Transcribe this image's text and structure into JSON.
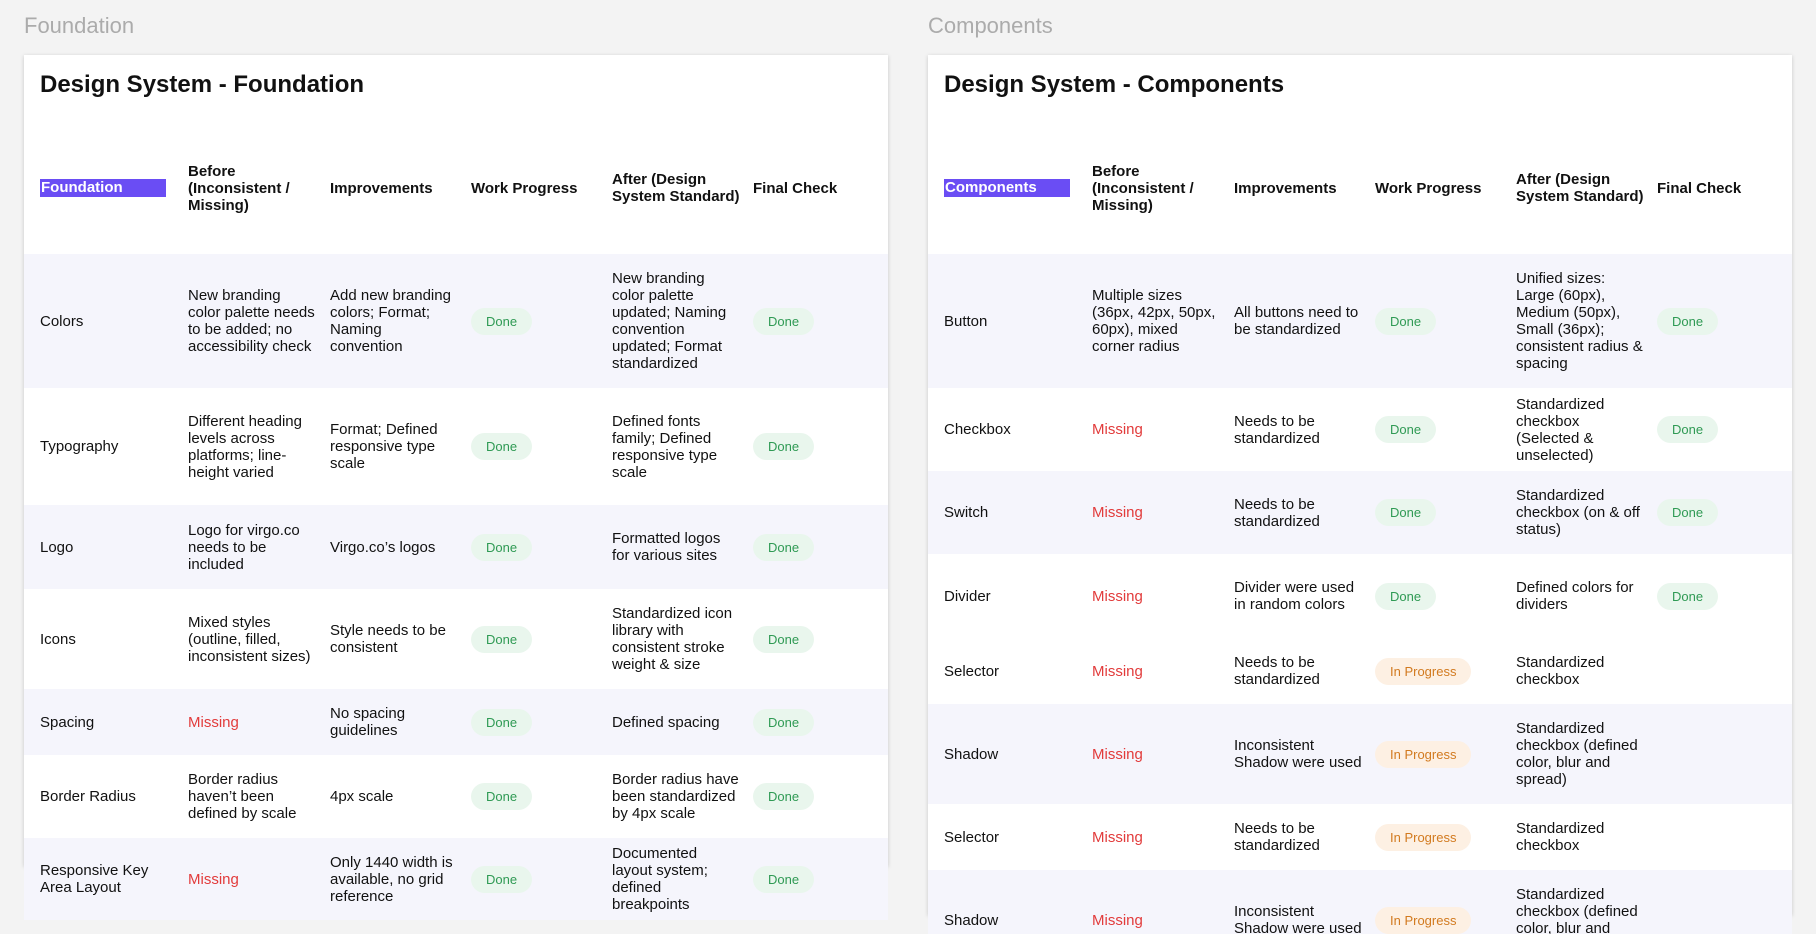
{
  "frames": {
    "left_label": "Foundation",
    "right_label": "Components"
  },
  "colors": {
    "accent": "#6a4df4",
    "missing": "#e23b3b",
    "done_text": "#2f9a54",
    "done_bg": "#e9f6ed",
    "progress_text": "#d27a1f",
    "progress_bg": "#fdf0e3",
    "alt_row": "#f5f5fc"
  },
  "foundation": {
    "title": "Design System - Foundation",
    "headers": [
      "Foundation",
      "Before (Inconsistent / Missing)",
      "Improvements",
      "Work Progress",
      "After (Design System Standard)",
      "Final Check"
    ],
    "rows": [
      {
        "name": "Colors",
        "before": "New branding color palette needs to be added; no accessibility check",
        "before_missing": false,
        "improvements": "Add new branding colors; Format; Naming convention",
        "progress": "Done",
        "after": "New branding color palette updated; Naming convention updated; Format standardized",
        "final": "Done",
        "h": 134,
        "alt": true
      },
      {
        "name": "Typography",
        "before": "Different heading levels across platforms; line-height varied",
        "before_missing": false,
        "improvements": "Format; Defined responsive type scale",
        "progress": "Done",
        "after": "Defined fonts family; Defined responsive type scale",
        "final": "Done",
        "h": 117,
        "alt": false
      },
      {
        "name": "Logo",
        "before": "Logo for virgo.co needs to be included",
        "before_missing": false,
        "improvements": "Virgo.co’s logos",
        "progress": "Done",
        "after": "Formatted logos for various sites",
        "final": "Done",
        "h": 84,
        "alt": true
      },
      {
        "name": "Icons",
        "before": "Mixed styles (outline, filled, inconsistent sizes)",
        "before_missing": false,
        "improvements": "Style needs to be consistent",
        "progress": "Done",
        "after": "Standardized icon library with consistent stroke weight & size",
        "final": "Done",
        "h": 100,
        "alt": false
      },
      {
        "name": "Spacing",
        "before": "Missing",
        "before_missing": true,
        "improvements": "No spacing guidelines",
        "progress": "Done",
        "after": "Defined spacing",
        "final": "Done",
        "h": 66,
        "alt": true
      },
      {
        "name": "Border Radius",
        "before": "Border radius haven’t been defined by scale",
        "before_missing": false,
        "improvements": "4px scale",
        "progress": "Done",
        "after": "Border radius have been standardized by 4px scale",
        "final": "Done",
        "h": 83,
        "alt": false
      },
      {
        "name": "Responsive Key Area Layout",
        "before": "Missing",
        "before_missing": true,
        "improvements": "Only 1440 width is available, no grid reference",
        "progress": "Done",
        "after": "Documented layout system; defined breakpoints",
        "final": "Done",
        "h": 82,
        "alt": true
      }
    ]
  },
  "components": {
    "title": "Design System - Components",
    "headers": [
      "Components",
      "Before (Inconsistent / Missing)",
      "Improvements",
      "Work Progress",
      "After (Design System Standard)",
      "Final Check"
    ],
    "rows": [
      {
        "name": "Button",
        "before": "Multiple sizes (36px, 42px, 50px, 60px), mixed corner radius",
        "before_missing": false,
        "improvements": "All buttons need to be standardized",
        "progress": "Done",
        "after": "Unified sizes: Large (60px), Medium (50px), Small (36px); consistent radius & spacing",
        "final": "Done",
        "h": 134,
        "alt": true
      },
      {
        "name": "Checkbox",
        "before": "Missing",
        "before_missing": true,
        "improvements": "Needs to be standardized",
        "progress": "Done",
        "after": "Standardized checkbox (Selected & unselected)",
        "final": "Done",
        "h": 83,
        "alt": false
      },
      {
        "name": "Switch",
        "before": "Missing",
        "before_missing": true,
        "improvements": "Needs to be standardized",
        "progress": "Done",
        "after": "Standardized checkbox (on & off status)",
        "final": "Done",
        "h": 83,
        "alt": true
      },
      {
        "name": "Divider",
        "before": "Missing",
        "before_missing": true,
        "improvements": "Divider were used in random colors",
        "progress": "Done",
        "after": "Defined colors for dividers",
        "final": "Done",
        "h": 84,
        "alt": false
      },
      {
        "name": "Selector",
        "before": "Missing",
        "before_missing": true,
        "improvements": "Needs to be standardized",
        "progress": "In Progress",
        "after": "Standardized checkbox",
        "final": "",
        "h": 66,
        "alt": false
      },
      {
        "name": "Shadow",
        "before": "Missing",
        "before_missing": true,
        "improvements": "Inconsistent Shadow were used",
        "progress": "In Progress",
        "after": "Standardized checkbox (defined color, blur and spread)",
        "final": "",
        "h": 100,
        "alt": true
      },
      {
        "name": "Selector",
        "before": "Missing",
        "before_missing": true,
        "improvements": "Needs to be standardized",
        "progress": "In Progress",
        "after": "Standardized checkbox",
        "final": "",
        "h": 66,
        "alt": false
      },
      {
        "name": "Shadow",
        "before": "Missing",
        "before_missing": true,
        "improvements": "Inconsistent Shadow were used",
        "progress": "In Progress",
        "after": "Standardized checkbox (defined color, blur and spread)",
        "final": "",
        "h": 100,
        "alt": true
      }
    ]
  }
}
